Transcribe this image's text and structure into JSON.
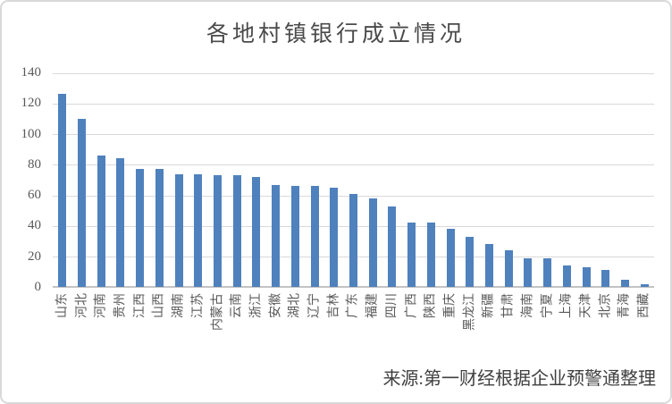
{
  "title": "各地村镇银行成立情况",
  "source_note": "来源:第一财经根据企业预警通整理",
  "colors": {
    "bar": "#4F81BD",
    "gridline": "#D9D9D9",
    "axis_line": "#C3C3C3",
    "tick_text": "#595959",
    "title_text": "#4A4A4A",
    "source_text": "#3F3F3F",
    "border": "#D9D9D9",
    "background": "#FFFFFF"
  },
  "chart_data": {
    "type": "bar",
    "title": "各地村镇银行成立情况",
    "categories": [
      "山东",
      "河北",
      "河南",
      "贵州",
      "江西",
      "山西",
      "湖南",
      "江苏",
      "内蒙古",
      "云南",
      "浙江",
      "安徽",
      "湖北",
      "辽宁",
      "吉林",
      "广东",
      "福建",
      "四川",
      "广西",
      "陕西",
      "重庆",
      "黑龙江",
      "新疆",
      "甘肃",
      "海南",
      "宁夏",
      "上海",
      "天津",
      "北京",
      "青海",
      "西藏"
    ],
    "values": [
      126,
      110,
      86,
      84,
      77,
      77,
      74,
      74,
      73,
      73,
      72,
      67,
      66,
      66,
      65,
      61,
      58,
      53,
      42,
      42,
      38,
      33,
      28,
      24,
      19,
      19,
      14,
      13,
      11,
      5,
      2
    ],
    "xlabel": "",
    "ylabel": "",
    "ylim": [
      0,
      140
    ],
    "ytick_step": 20,
    "yticks": [
      0,
      20,
      40,
      60,
      80,
      100,
      120,
      140
    ],
    "grid": true,
    "legend": false,
    "x_label_rotation_deg": -90,
    "annotation": "来源:第一财经根据企业预警通整理"
  }
}
